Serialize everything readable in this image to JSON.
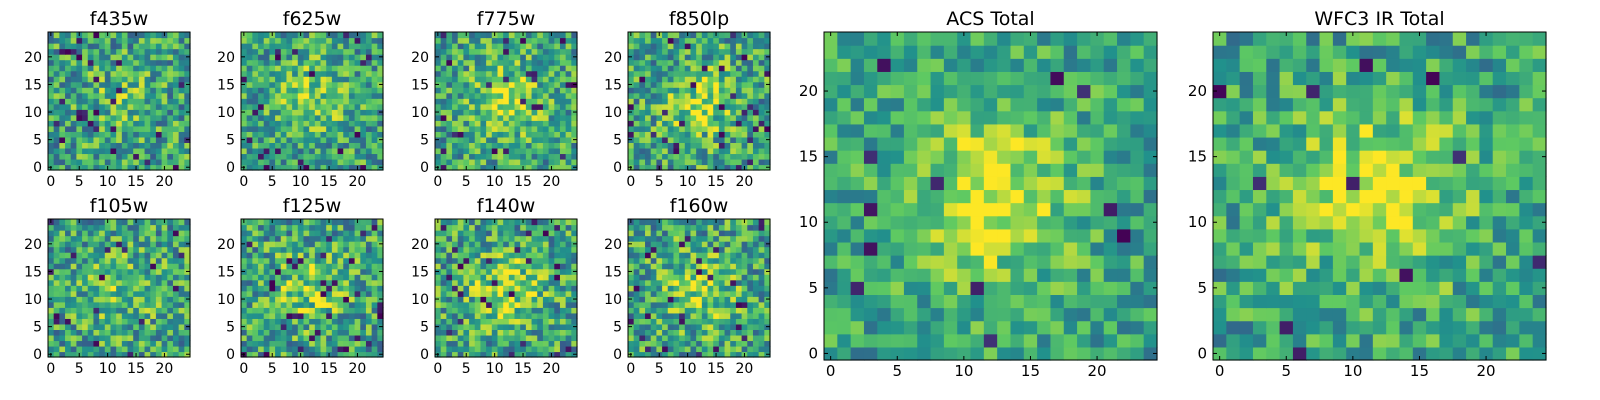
{
  "figure": {
    "colormap": "viridis",
    "colormap_stops": [
      "#440154",
      "#3b528b",
      "#21918c",
      "#5ec962",
      "#fde725"
    ]
  },
  "chart_data": [
    {
      "type": "heatmap",
      "title": "f435w",
      "grid_size": 25,
      "xlim": [
        0,
        24
      ],
      "ylim": [
        0,
        24
      ],
      "xticks": [
        0,
        5,
        10,
        15,
        20
      ],
      "yticks": [
        0,
        5,
        10,
        15,
        20
      ],
      "xtick_labels": [
        "0",
        "5",
        "10",
        "15",
        "20"
      ],
      "ytick_labels": [
        "0",
        "5",
        "10",
        "15",
        "20"
      ],
      "seed": 11,
      "peak": [
        12,
        12
      ],
      "peak_strength": 0.12,
      "noise": 0.3,
      "dark_pixels": 0.04
    },
    {
      "type": "heatmap",
      "title": "f625w",
      "grid_size": 25,
      "xlim": [
        0,
        24
      ],
      "ylim": [
        0,
        24
      ],
      "xticks": [
        0,
        5,
        10,
        15,
        20
      ],
      "yticks": [
        0,
        5,
        10,
        15,
        20
      ],
      "xtick_labels": [
        "0",
        "5",
        "10",
        "15",
        "20"
      ],
      "ytick_labels": [
        "0",
        "5",
        "10",
        "15",
        "20"
      ],
      "seed": 22,
      "peak": [
        12,
        13
      ],
      "peak_strength": 0.22,
      "noise": 0.28,
      "dark_pixels": 0.04
    },
    {
      "type": "heatmap",
      "title": "f775w",
      "grid_size": 25,
      "xlim": [
        0,
        24
      ],
      "ylim": [
        0,
        24
      ],
      "xticks": [
        0,
        5,
        10,
        15,
        20
      ],
      "yticks": [
        0,
        5,
        10,
        15,
        20
      ],
      "xtick_labels": [
        "0",
        "5",
        "10",
        "15",
        "20"
      ],
      "ytick_labels": [
        "0",
        "5",
        "10",
        "15",
        "20"
      ],
      "seed": 33,
      "peak": [
        12,
        12
      ],
      "peak_strength": 0.3,
      "noise": 0.28,
      "dark_pixels": 0.04
    },
    {
      "type": "heatmap",
      "title": "f850lp",
      "grid_size": 25,
      "xlim": [
        0,
        24
      ],
      "ylim": [
        0,
        24
      ],
      "xticks": [
        0,
        5,
        10,
        15,
        20
      ],
      "yticks": [
        0,
        5,
        10,
        15,
        20
      ],
      "xtick_labels": [
        "0",
        "5",
        "10",
        "15",
        "20"
      ],
      "ytick_labels": [
        "0",
        "5",
        "10",
        "15",
        "20"
      ],
      "seed": 44,
      "peak": [
        12,
        12
      ],
      "peak_strength": 0.25,
      "noise": 0.3,
      "dark_pixels": 0.05
    },
    {
      "type": "heatmap",
      "title": "f105w",
      "grid_size": 25,
      "xlim": [
        0,
        24
      ],
      "ylim": [
        0,
        24
      ],
      "xticks": [
        0,
        5,
        10,
        15,
        20
      ],
      "yticks": [
        0,
        5,
        10,
        15,
        20
      ],
      "xtick_labels": [
        "0",
        "5",
        "10",
        "15",
        "20"
      ],
      "ytick_labels": [
        "0",
        "5",
        "10",
        "15",
        "20"
      ],
      "seed": 55,
      "peak": [
        12,
        12
      ],
      "peak_strength": 0.18,
      "noise": 0.3,
      "dark_pixels": 0.03
    },
    {
      "type": "heatmap",
      "title": "f125w",
      "grid_size": 25,
      "xlim": [
        0,
        24
      ],
      "ylim": [
        0,
        24
      ],
      "xticks": [
        0,
        5,
        10,
        15,
        20
      ],
      "yticks": [
        0,
        5,
        10,
        15,
        20
      ],
      "xtick_labels": [
        "0",
        "5",
        "10",
        "15",
        "20"
      ],
      "ytick_labels": [
        "0",
        "5",
        "10",
        "15",
        "20"
      ],
      "seed": 66,
      "peak": [
        12,
        12
      ],
      "peak_strength": 0.22,
      "noise": 0.3,
      "dark_pixels": 0.04
    },
    {
      "type": "heatmap",
      "title": "f140w",
      "grid_size": 25,
      "xlim": [
        0,
        24
      ],
      "ylim": [
        0,
        24
      ],
      "xticks": [
        0,
        5,
        10,
        15,
        20
      ],
      "yticks": [
        0,
        5,
        10,
        15,
        20
      ],
      "xtick_labels": [
        "0",
        "5",
        "10",
        "15",
        "20"
      ],
      "ytick_labels": [
        "0",
        "5",
        "10",
        "15",
        "20"
      ],
      "seed": 77,
      "peak": [
        12,
        12
      ],
      "peak_strength": 0.28,
      "noise": 0.3,
      "dark_pixels": 0.04
    },
    {
      "type": "heatmap",
      "title": "f160w",
      "grid_size": 25,
      "xlim": [
        0,
        24
      ],
      "ylim": [
        0,
        24
      ],
      "xticks": [
        0,
        5,
        10,
        15,
        20
      ],
      "yticks": [
        0,
        5,
        10,
        15,
        20
      ],
      "xtick_labels": [
        "0",
        "5",
        "10",
        "15",
        "20"
      ],
      "ytick_labels": [
        "0",
        "5",
        "10",
        "15",
        "20"
      ],
      "seed": 88,
      "peak": [
        12,
        12
      ],
      "peak_strength": 0.26,
      "noise": 0.3,
      "dark_pixels": 0.04
    },
    {
      "type": "heatmap",
      "title": "ACS Total",
      "grid_size": 25,
      "xlim": [
        0,
        24
      ],
      "ylim": [
        0,
        24
      ],
      "xticks": [
        0,
        5,
        10,
        15,
        20
      ],
      "yticks": [
        0,
        5,
        10,
        15,
        20
      ],
      "xtick_labels": [
        "0",
        "5",
        "10",
        "15",
        "20"
      ],
      "ytick_labels": [
        "0",
        "5",
        "10",
        "15",
        "20"
      ],
      "seed": 99,
      "peak": [
        12,
        12
      ],
      "peak_strength": 0.38,
      "noise": 0.22,
      "dark_pixels": 0.02
    },
    {
      "type": "heatmap",
      "title": "WFC3 IR Total",
      "grid_size": 25,
      "xlim": [
        0,
        24
      ],
      "ylim": [
        0,
        24
      ],
      "xticks": [
        0,
        5,
        10,
        15,
        20
      ],
      "yticks": [
        0,
        5,
        10,
        15,
        20
      ],
      "xtick_labels": [
        "0",
        "5",
        "10",
        "15",
        "20"
      ],
      "ytick_labels": [
        "0",
        "5",
        "10",
        "15",
        "20"
      ],
      "seed": 123,
      "peak": [
        12,
        12
      ],
      "peak_strength": 0.4,
      "noise": 0.24,
      "dark_pixels": 0.02
    }
  ]
}
